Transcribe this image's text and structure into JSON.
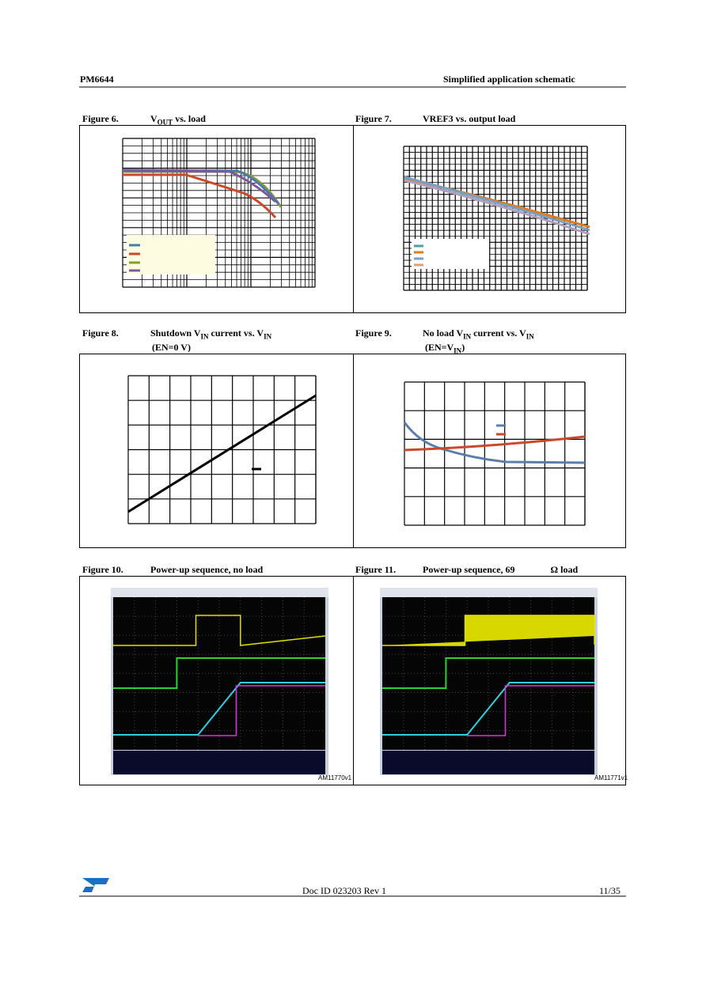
{
  "header": {
    "left": "PM6644",
    "right": "Simplified application schematic"
  },
  "figures": [
    {
      "number": "Figure 6.",
      "title": [
        "V",
        "OUT",
        " vs. load"
      ]
    },
    {
      "number": "Figure 7.",
      "title": [
        "VREF3 vs. output load"
      ]
    },
    {
      "number": "Figure 8.",
      "title": [
        "Shutdown V",
        "IN",
        " current vs. V",
        "IN"
      ],
      "subtitle": [
        "(EN=0 V)"
      ]
    },
    {
      "number": "Figure 9.",
      "title": [
        "No load V",
        "IN",
        " current vs. V",
        "IN"
      ],
      "subtitle": [
        "(EN=V",
        "IN",
        ")"
      ]
    },
    {
      "number": "Figure 10.",
      "title": [
        "Power-up sequence, no load"
      ],
      "code": "AM11770v1"
    },
    {
      "number": "Figure 11.",
      "title": [
        "Power-up sequence, 69 ",
        "Ω load"
      ],
      "code": "AM11771v1"
    }
  ],
  "footer": {
    "doc_id": "Doc ID 023203 Rev 1",
    "page": "11/35"
  }
}
